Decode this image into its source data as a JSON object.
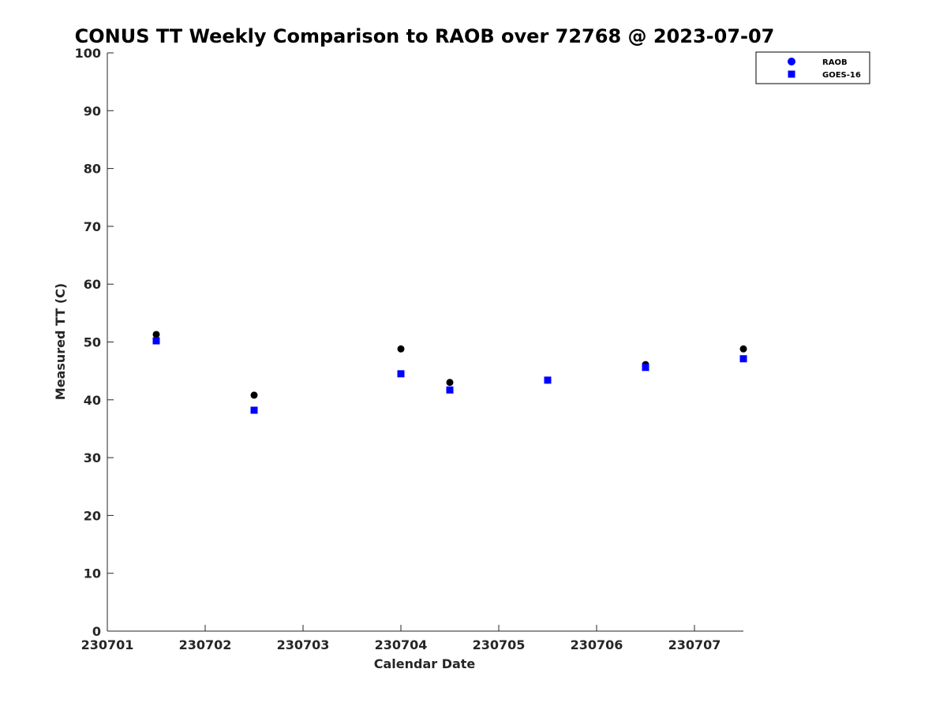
{
  "chart_data": {
    "type": "scatter",
    "title": "CONUS TT Weekly Comparison to RAOB over 72768 @ 2023-07-07",
    "xlabel": "Calendar Date",
    "ylabel": "Measured TT (C)",
    "xlim": [
      1,
      7.5
    ],
    "ylim": [
      0,
      100
    ],
    "x_ticks": [
      {
        "value": 1,
        "label": "230701"
      },
      {
        "value": 2,
        "label": "230702"
      },
      {
        "value": 3,
        "label": "230703"
      },
      {
        "value": 4,
        "label": "230704"
      },
      {
        "value": 5,
        "label": "230705"
      },
      {
        "value": 6,
        "label": "230706"
      },
      {
        "value": 7,
        "label": "230707"
      }
    ],
    "y_ticks": [
      {
        "value": 0,
        "label": "0"
      },
      {
        "value": 10,
        "label": "10"
      },
      {
        "value": 20,
        "label": "20"
      },
      {
        "value": 30,
        "label": "30"
      },
      {
        "value": 40,
        "label": "40"
      },
      {
        "value": 50,
        "label": "50"
      },
      {
        "value": 60,
        "label": "60"
      },
      {
        "value": 70,
        "label": "70"
      },
      {
        "value": 80,
        "label": "80"
      },
      {
        "value": 90,
        "label": "90"
      },
      {
        "value": 100,
        "label": "100"
      }
    ],
    "grid": false,
    "legend_position": "top-right",
    "series": [
      {
        "name": "RAOB",
        "marker": "circle",
        "color": "#000000",
        "legend_color": "#0000ff",
        "x": [
          1.5,
          2.5,
          4.0,
          4.5,
          5.5,
          6.5,
          7.5
        ],
        "values": [
          51.3,
          40.8,
          48.8,
          43.0,
          43.4,
          46.1,
          48.8
        ]
      },
      {
        "name": "GOES-16",
        "marker": "square",
        "color": "#0000ff",
        "x": [
          1.5,
          2.5,
          4.0,
          4.5,
          5.5,
          6.5,
          7.5
        ],
        "values": [
          50.2,
          38.2,
          44.5,
          41.7,
          43.4,
          45.6,
          47.1
        ]
      }
    ]
  }
}
